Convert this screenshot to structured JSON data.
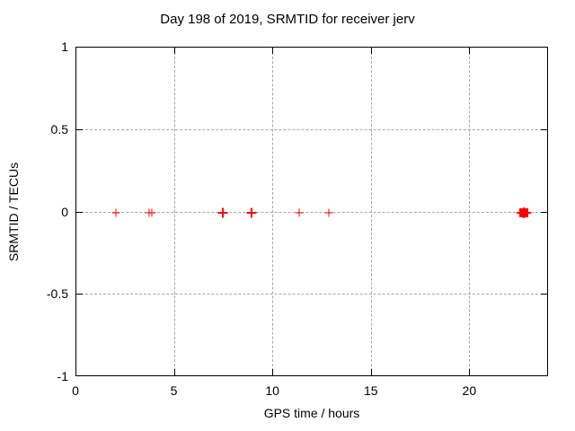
{
  "chart_data": {
    "type": "scatter",
    "title": "Day 198 of 2019, SRMTID for receiver jerv",
    "xlabel": "GPS time / hours",
    "ylabel": "SRMTID / TECUs",
    "xlim": [
      0,
      24
    ],
    "ylim": [
      -1,
      1
    ],
    "xticks": [
      0,
      5,
      10,
      15,
      20
    ],
    "yticks": [
      1,
      0.5,
      0,
      -0.5,
      -1
    ],
    "grid": true,
    "grid_style": "dashed",
    "legend": "none",
    "colors": {
      "marker": "#ff0000",
      "grid": "#a6a6a6",
      "axis": "#000000",
      "background": "#ffffff"
    },
    "series": [
      {
        "name": "SRMTID",
        "marker": "plus",
        "color": "#ff0000",
        "points": [
          {
            "x": 2.0,
            "y": 0,
            "style": "plus"
          },
          {
            "x": 3.7,
            "y": 0,
            "style": "plus"
          },
          {
            "x": 3.85,
            "y": 0,
            "style": "plus"
          },
          {
            "x": 7.45,
            "y": 0,
            "style": "plus-bold"
          },
          {
            "x": 8.9,
            "y": 0,
            "style": "plus-bold"
          },
          {
            "x": 11.3,
            "y": 0,
            "style": "plus"
          },
          {
            "x": 12.8,
            "y": 0,
            "style": "plus"
          },
          {
            "x": 22.7,
            "y": 0,
            "style": "square-cluster"
          }
        ]
      }
    ]
  }
}
